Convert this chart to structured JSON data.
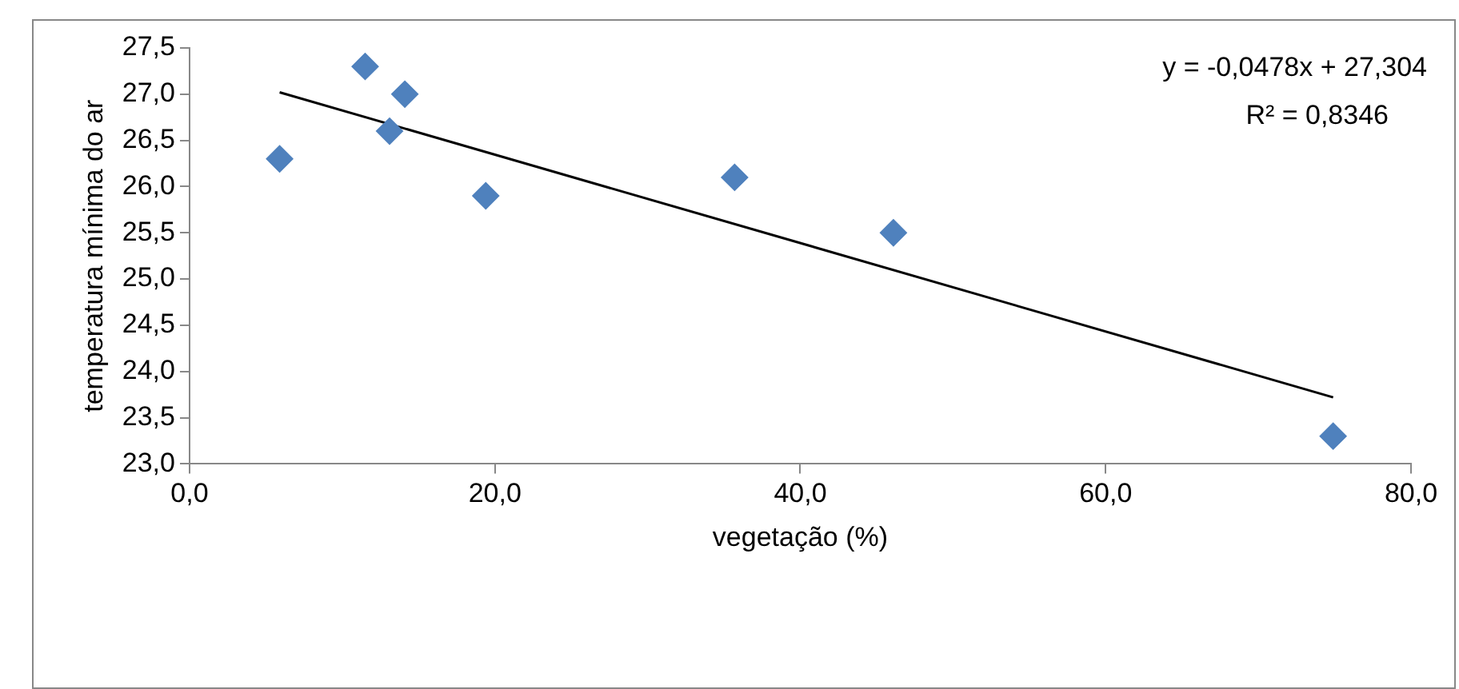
{
  "chart_data": {
    "type": "scatter",
    "xlabel": "vegetação (%)",
    "ylabel": "temperatura mínima do ar",
    "xlim": [
      0,
      80
    ],
    "xticks": [
      {
        "value": 0,
        "label": "0,0"
      },
      {
        "value": 20,
        "label": "20,0"
      },
      {
        "value": 40,
        "label": "40,0"
      },
      {
        "value": 60,
        "label": "60,0"
      },
      {
        "value": 80,
        "label": "80,0"
      }
    ],
    "ylim": [
      23,
      27.5
    ],
    "yticks": [
      {
        "value": 23,
        "label": "23,0"
      },
      {
        "value": 23.5,
        "label": "23,5"
      },
      {
        "value": 24,
        "label": "24,0"
      },
      {
        "value": 24.5,
        "label": "24,5"
      },
      {
        "value": 25,
        "label": "25,0"
      },
      {
        "value": 25.5,
        "label": "25,5"
      },
      {
        "value": 26,
        "label": "26,0"
      },
      {
        "value": 26.5,
        "label": "26,5"
      },
      {
        "value": 27,
        "label": "27,0"
      },
      {
        "value": 27.5,
        "label": "27,5"
      }
    ],
    "series": [
      {
        "color": "#4f81bd",
        "marker": "diamond",
        "x": [
          5.9,
          11.5,
          13.1,
          14.1,
          19.4,
          35.7,
          46.1,
          74.9
        ],
        "values": [
          26.3,
          27.3,
          26.6,
          27.0,
          25.9,
          26.1,
          25.5,
          23.3
        ]
      },
      {
        "type": "line",
        "marker": "none",
        "color": "#000000",
        "x": [
          5.9,
          74.9
        ],
        "values": [
          27.02,
          23.72
        ]
      }
    ],
    "annotations": [
      "y = -0,0478x + 27,304",
      "R² = 0,8346"
    ],
    "grid": false,
    "legend": false
  }
}
